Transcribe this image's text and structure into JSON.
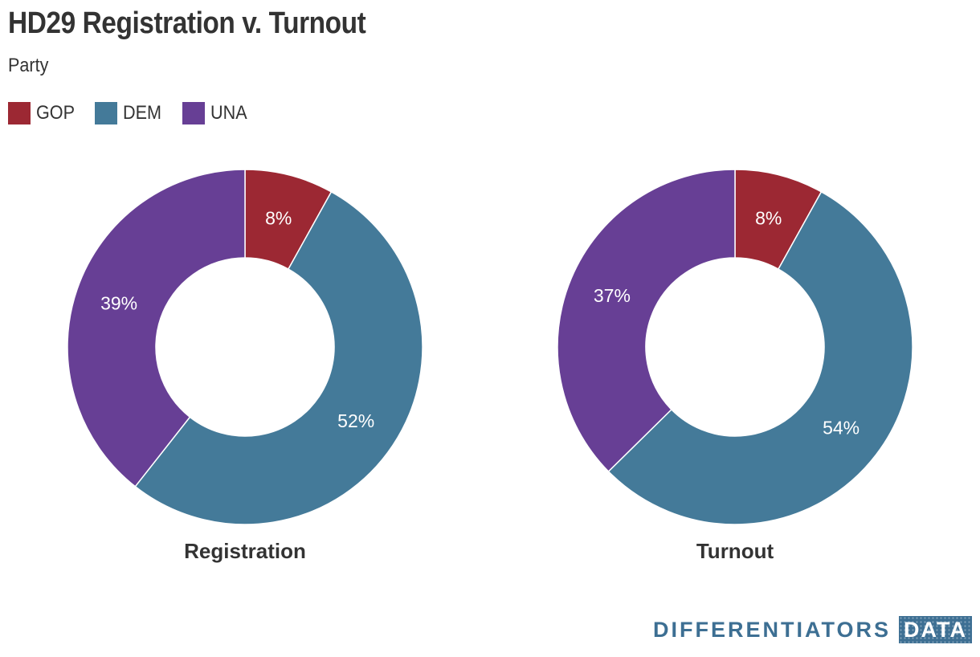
{
  "title": "HD29 Registration v. Turnout",
  "subtitle": "Party",
  "legend": [
    {
      "label": "GOP",
      "color": "#9c2833"
    },
    {
      "label": "DEM",
      "color": "#447a99"
    },
    {
      "label": "UNA",
      "color": "#673f95"
    }
  ],
  "chart_data": [
    {
      "type": "pie",
      "donut": true,
      "title": "Registration",
      "categories": [
        "GOP",
        "DEM",
        "UNA"
      ],
      "values": [
        8,
        52,
        39
      ],
      "labels": [
        "8%",
        "52%",
        "39%"
      ],
      "colors": [
        "#9c2833",
        "#447a99",
        "#673f95"
      ]
    },
    {
      "type": "pie",
      "donut": true,
      "title": "Turnout",
      "categories": [
        "GOP",
        "DEM",
        "UNA"
      ],
      "values": [
        8,
        54,
        37
      ],
      "labels": [
        "8%",
        "54%",
        "37%"
      ],
      "colors": [
        "#9c2833",
        "#447a99",
        "#673f95"
      ]
    }
  ],
  "brand": {
    "word": "DIFFERENTIATORS",
    "box": "DATA"
  }
}
